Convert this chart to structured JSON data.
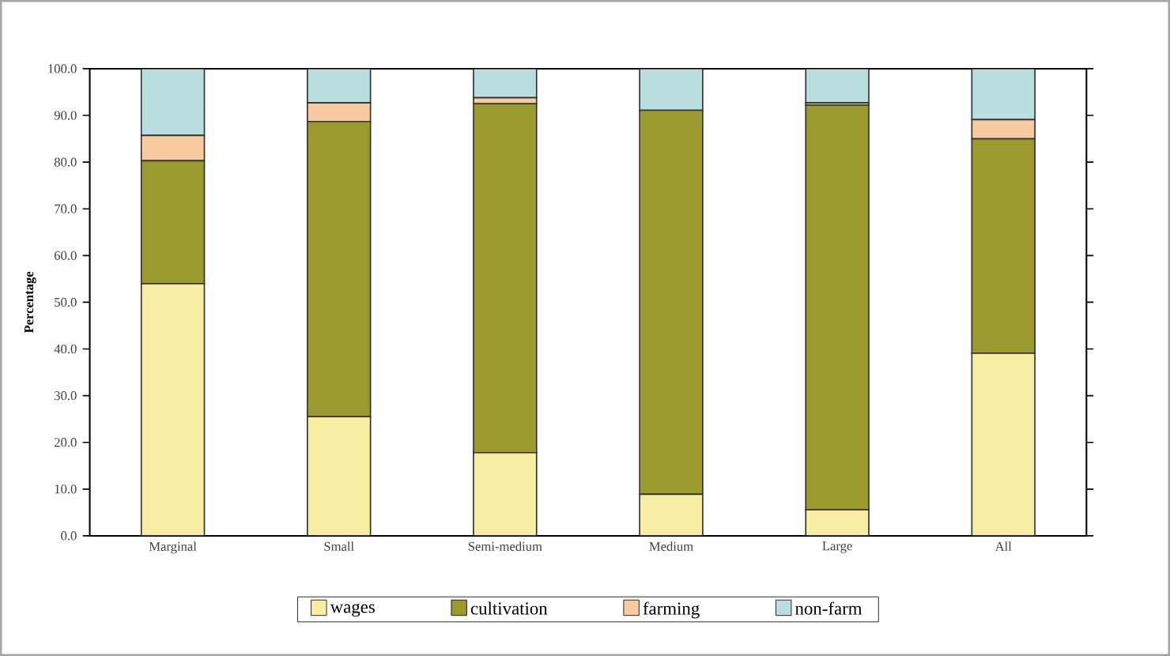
{
  "chart_data": {
    "type": "bar",
    "stacked": true,
    "ylabel": "Percentage",
    "categories": [
      "Marginal",
      "Small",
      "Semi-medium",
      "Medium",
      "Large",
      "All"
    ],
    "series": [
      {
        "name": "wages",
        "color": "#f7eda3",
        "values": [
          54.0,
          25.5,
          17.8,
          8.9,
          5.6,
          39.1
        ]
      },
      {
        "name": "cultivation",
        "color": "#9a9a2e",
        "values": [
          26.3,
          63.2,
          74.7,
          82.2,
          86.6,
          45.9
        ]
      },
      {
        "name": "farming",
        "color": "#f7caa0",
        "values": [
          5.4,
          4.0,
          1.3,
          0.0,
          0.5,
          4.1
        ]
      },
      {
        "name": "non-farm",
        "color": "#b9dee0",
        "values": [
          14.3,
          7.3,
          6.2,
          8.9,
          7.3,
          10.9
        ]
      }
    ],
    "ylim": [
      0,
      100
    ],
    "yticks": [
      {
        "value": 0,
        "label": "0.0"
      },
      {
        "value": 10,
        "label": "10.0"
      },
      {
        "value": 20,
        "label": "20.0"
      },
      {
        "value": 30,
        "label": "30.0"
      },
      {
        "value": 40,
        "label": "40.0"
      },
      {
        "value": 50,
        "label": "50.0"
      },
      {
        "value": 60,
        "label": "60.0"
      },
      {
        "value": 70,
        "label": "70.0"
      },
      {
        "value": 80,
        "label": "80.0"
      },
      {
        "value": 90,
        "label": "90.0"
      },
      {
        "value": 100,
        "label": "100.0"
      }
    ],
    "legend": "bottom"
  }
}
